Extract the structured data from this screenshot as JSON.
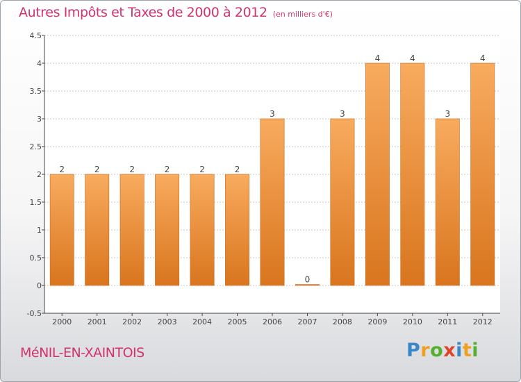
{
  "header": {
    "title": "Autres Impôts et Taxes de 2000 à 2012",
    "unit": "(en milliers d'€)"
  },
  "footer": {
    "commune": "MéNIL-EN-XAINTOIS",
    "logo_letters": [
      "P",
      "r",
      "o",
      "x",
      "i",
      "t",
      "i"
    ],
    "logo_colors": [
      "#3a87c8",
      "#f0a020",
      "#55b030",
      "#e0442c",
      "#3a87c8",
      "#f0a020",
      "#55b030"
    ]
  },
  "colors": {
    "bar_light": "#f8ab5e",
    "bar_dark": "#d9751e",
    "axis": "#444444",
    "grid": "#c8c8c8",
    "text": "#444444"
  },
  "chart_data": {
    "type": "bar",
    "categories": [
      "2000",
      "2001",
      "2002",
      "2003",
      "2004",
      "2005",
      "2006",
      "2007",
      "2008",
      "2009",
      "2010",
      "2011",
      "2012"
    ],
    "values": [
      2,
      2,
      2,
      2,
      2,
      2,
      3,
      0,
      3,
      4,
      4,
      3,
      4
    ],
    "value_labels": [
      "2",
      "2",
      "2",
      "2",
      "2",
      "2",
      "3",
      "0",
      "3",
      "4",
      "4",
      "3",
      "4"
    ],
    "ylim": [
      -0.5,
      4.5
    ],
    "yticks": [
      -0.5,
      0,
      0.5,
      1,
      1.5,
      2,
      2.5,
      3,
      3.5,
      4,
      4.5
    ],
    "ytick_labels": [
      "-0.5",
      "0",
      "0.5",
      "1",
      "1.5",
      "2",
      "2.5",
      "3",
      "3.5",
      "4",
      "4.5"
    ],
    "grid": true,
    "legend": false
  }
}
